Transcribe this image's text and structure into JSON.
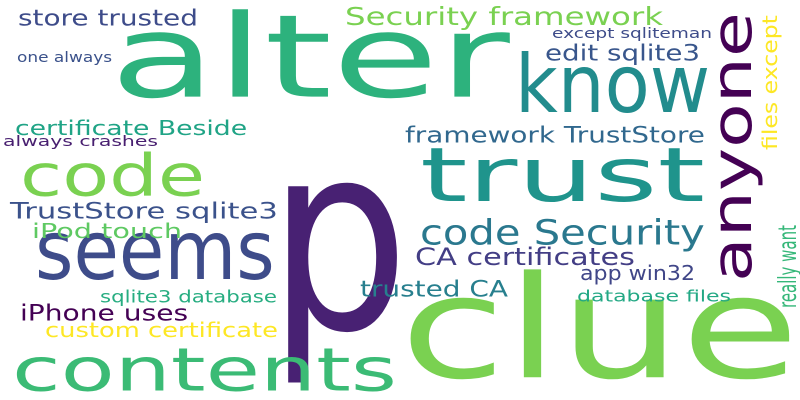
{
  "words": [
    {
      "text": "p",
      "color": "#482173",
      "orientation": "horizontal"
    },
    {
      "text": "alter",
      "color": "#2db27d",
      "orientation": "horizontal"
    },
    {
      "text": "clue",
      "color": "#7ad151",
      "orientation": "horizontal"
    },
    {
      "text": "contents",
      "color": "#3bbb75",
      "orientation": "horizontal"
    },
    {
      "text": "seems",
      "color": "#3e4c8a",
      "orientation": "horizontal"
    },
    {
      "text": "trust",
      "color": "#1f948c",
      "orientation": "horizontal"
    },
    {
      "text": "code",
      "color": "#7ad151",
      "orientation": "horizontal"
    },
    {
      "text": "know",
      "color": "#228c8d",
      "orientation": "horizontal"
    },
    {
      "text": "anyone",
      "color": "#440154",
      "orientation": "vertical"
    },
    {
      "text": "code Security",
      "color": "#2a788e",
      "orientation": "horizontal"
    },
    {
      "text": "Security framework",
      "color": "#7ad151",
      "orientation": "horizontal"
    },
    {
      "text": "framework TrustStore",
      "color": "#31688e",
      "orientation": "horizontal"
    },
    {
      "text": "TrustStore sqlite3",
      "color": "#3b528b",
      "orientation": "horizontal"
    },
    {
      "text": "CA certificates",
      "color": "#433e85",
      "orientation": "horizontal"
    },
    {
      "text": "trusted CA",
      "color": "#277f8e",
      "orientation": "horizontal"
    },
    {
      "text": "iPhone uses",
      "color": "#440154",
      "orientation": "horizontal"
    },
    {
      "text": "iPod touch",
      "color": "#5ec962",
      "orientation": "horizontal"
    },
    {
      "text": "store trusted",
      "color": "#3e4c8a",
      "orientation": "horizontal"
    },
    {
      "text": "certificate Beside",
      "color": "#20a486",
      "orientation": "horizontal"
    },
    {
      "text": "edit sqlite3",
      "color": "#39568c",
      "orientation": "horizontal"
    },
    {
      "text": "really want",
      "color": "#35b779",
      "orientation": "vertical"
    },
    {
      "text": "app win32",
      "color": "#404688",
      "orientation": "horizontal"
    },
    {
      "text": "custom certificate",
      "color": "#fde725",
      "orientation": "horizontal"
    },
    {
      "text": "sqlite3 database",
      "color": "#27ad81",
      "orientation": "horizontal"
    },
    {
      "text": "database files",
      "color": "#22a884",
      "orientation": "horizontal"
    },
    {
      "text": "files except",
      "color": "#fde725",
      "orientation": "vertical"
    },
    {
      "text": "except sqliteman",
      "color": "#3e4c8a",
      "orientation": "horizontal"
    },
    {
      "text": "one always",
      "color": "#3b528b",
      "orientation": "horizontal"
    },
    {
      "text": "always crashes",
      "color": "#481f70",
      "orientation": "horizontal"
    }
  ]
}
